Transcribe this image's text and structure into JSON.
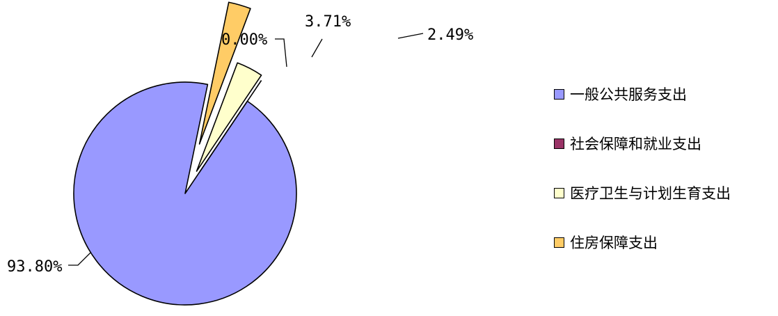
{
  "chart_data": {
    "type": "pie",
    "style": "exploded 3d-like",
    "categories": [
      "一般公共服务支出",
      "社会保障和就业支出",
      "医疗卫生与计划生育支出",
      "住房保障支出"
    ],
    "values": [
      93.8,
      0.0,
      3.71,
      2.49
    ],
    "data_labels": [
      "93.80%",
      "0.00%",
      "3.71%",
      "2.49%"
    ],
    "colors": [
      "#9999ff",
      "#993366",
      "#ffffcc",
      "#ffcc66"
    ],
    "legend_position": "right",
    "grid": false
  }
}
